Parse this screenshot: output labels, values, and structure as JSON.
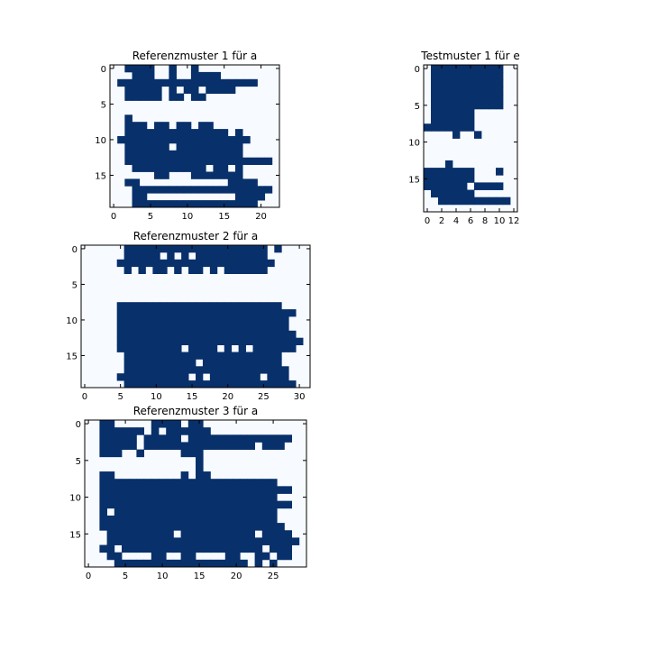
{
  "colors": {
    "filled": "#08306b",
    "empty": "#f7fbff",
    "frame": "#000000"
  },
  "chart_data": [
    {
      "type": "heatmap",
      "title": "Referenzmuster 1 für a",
      "xlim": [
        -0.5,
        22.5
      ],
      "ylim": [
        19.5,
        -0.5
      ],
      "xticks": [
        "0",
        "5",
        "10",
        "15",
        "20"
      ],
      "yticks": [
        "0",
        "5",
        "10",
        "15"
      ],
      "rows": [
        "  1111  1  1          ",
        "   111  1  1111       ",
        " 1111111111111111111 ",
        "  11111 1 11 1111     ",
        "  11111 11 11         ",
        "                      ",
        "                      ",
        "  1                   ",
        "  111 11 11 11        ",
        "  11111111111111 1    ",
        " 111111111111111111   ",
        "  111111 111111111    ",
        "  1111111111111111    ",
        "  11111111111111111111",
        "   1111111111 11 1    ",
        "      11   1111111    ",
        "  11            1111  ",
        "   1111111111111111111",
        "   11            1111 ",
        "   11111111111111111  "
      ]
    },
    {
      "type": "heatmap",
      "title": "Testmuster 1 für e",
      "xlim": [
        -0.5,
        12.5
      ],
      "ylim": [
        19.5,
        -0.5
      ],
      "xticks": [
        "0",
        "2",
        "4",
        "6",
        "8",
        "10",
        "12"
      ],
      "yticks": [
        "0",
        "5",
        "10",
        "15"
      ],
      "rows": [
        " 1111111111  ",
        " 1111111111  ",
        " 1111111111  ",
        " 1111111111  ",
        " 1111111111  ",
        " 1111111111  ",
        " 111111      ",
        " 111111      ",
        "1111111      ",
        "    1  1     ",
        "             ",
        "             ",
        "             ",
        "   1         ",
        "1111111   1  ",
        "1111111      ",
        "111111 1111  ",
        " 111111      ",
        "  1111111111 ",
        "             "
      ]
    },
    {
      "type": "heatmap",
      "title": "Referenzmuster 2 für a",
      "xlim": [
        -0.5,
        31.5
      ],
      "ylim": [
        19.5,
        -0.5
      ],
      "xticks": [
        "0",
        "5",
        "10",
        "15",
        "20",
        "25",
        "30"
      ],
      "yticks": [
        "0",
        "5",
        "10",
        "15"
      ],
      "rows": [
        "      11111111111111111111 1    ",
        "      11111 1 1 1111111111      ",
        "     1111111111111111111111     ",
        "      1 1 11 1 11 1 111111      ",
        "                                ",
        "                                ",
        "                                ",
        "                                ",
        "     11111111111111111111111    ",
        "     1111111111111111111111111  ",
        "     111111111111111111111111   ",
        "     111111111111111111111111   ",
        "     1111111111111111111111111  ",
        "     11111111111111111111111111 ",
        "     111111111 1111 1 1 111111  ",
        "      1111111111111111111111    ",
        "      1111111111 11111111111    ",
        "      11111111111111111111111   ",
        "     1111111111 1 1111111 111   ",
        "      111111111111111111111111  "
      ]
    },
    {
      "type": "heatmap",
      "title": "Referenzmuster 3 für a",
      "xlim": [
        -0.5,
        29.5
      ],
      "ylim": [
        19.5,
        -0.5
      ],
      "xticks": [
        "0",
        "5",
        "10",
        "15",
        "20",
        "25"
      ],
      "yticks": [
        "0",
        "5",
        "10",
        "15"
      ],
      "rows": [
        "  11     1111 11               ",
        "  111111 1 111111              ",
        "  11111 11111 11111111111111   ",
        "  11111 111111111111111 111    ",
        "  111  1     111               ",
        "               1               ",
        "               1               ",
        "  11         1 11              ",
        "  111111111111111111111111     ",
        "  11111111111111111111111111   ",
        "  111111111111111111111111     ",
        "  11111111111111111111111111   ",
        "  1 1111111111111111111111     ",
        "  111111111111111111111111     ",
        "  1111111111111111111111111    ",
        "   111111111 1111111111 1111   ",
        "   11111111111111111111111111  ",
        "  11 1111111111111111111 111   ",
        "   11    11  11    11  11 11   ",
        "    111111111111111111 1 1     "
      ]
    }
  ]
}
